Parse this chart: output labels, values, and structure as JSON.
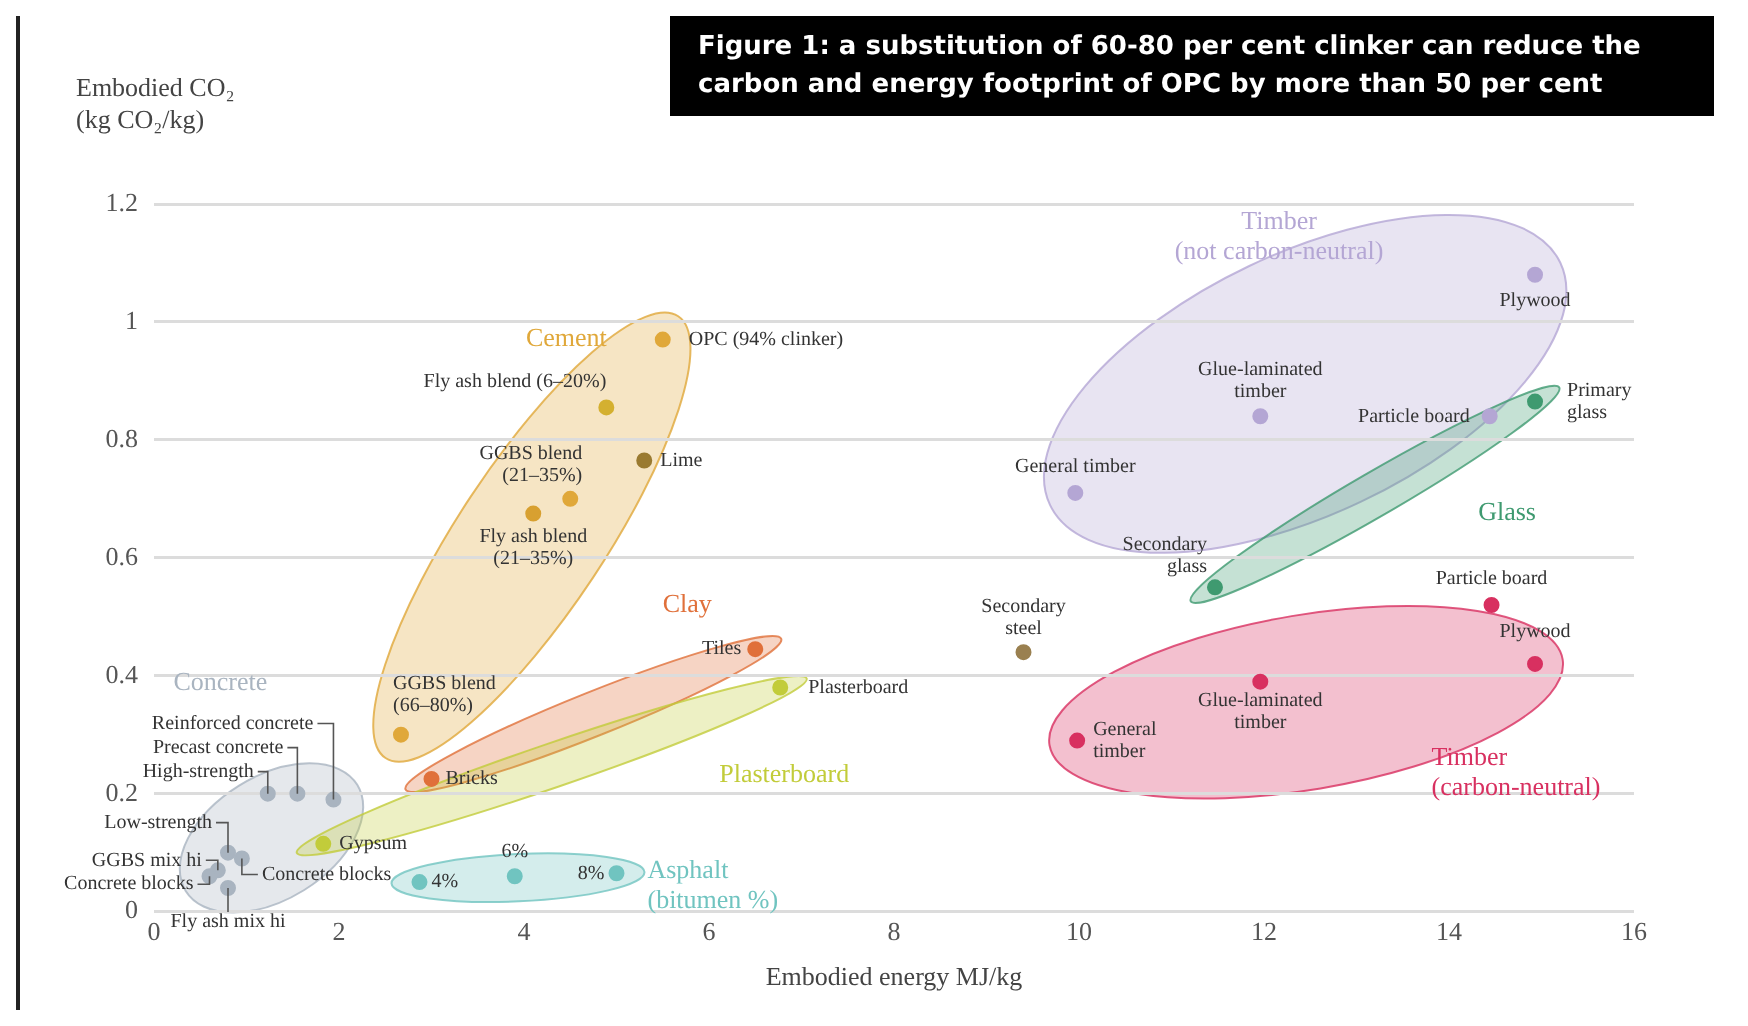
{
  "chart_data": {
    "type": "scatter",
    "title": "Figure 1: a substitution of 60-80 per cent clinker can reduce the carbon and energy footprint of OPC by more than 50 per cent",
    "xlabel": "Embodied energy MJ/kg",
    "ylabel": "Embodied CO₂ (kg CO₂/kg)",
    "series": [
      {
        "name": "Concrete",
        "color": "#a9b4c0",
        "x": [
          1.94,
          1.55,
          1.23,
          0.8,
          0.69,
          0.6,
          0.8,
          0.95
        ],
        "values": [
          0.19,
          0.2,
          0.2,
          0.1,
          0.07,
          0.06,
          0.04,
          0.09
        ]
      },
      {
        "name": "Cement",
        "color": "#e0a83a",
        "colors": [
          "#e0a83a",
          "#d4b030",
          "#9a7a30",
          "#e0a83a",
          "#d8a030",
          "#e0a83a"
        ],
        "x": [
          5.5,
          4.89,
          5.3,
          4.5,
          4.1,
          2.67
        ],
        "values": [
          0.97,
          0.855,
          0.765,
          0.7,
          0.675,
          0.3
        ]
      },
      {
        "name": "Clay",
        "color": "#e0703a",
        "x": [
          6.5,
          3.0
        ],
        "values": [
          0.445,
          0.225
        ]
      },
      {
        "name": "Plasterboard",
        "color": "#c2cc3a",
        "x": [
          6.77,
          1.83
        ],
        "values": [
          0.38,
          0.115
        ]
      },
      {
        "name": "Asphalt (bitumen %)",
        "color": "#70c4c0",
        "x": [
          2.87,
          3.9,
          5.0
        ],
        "values": [
          0.05,
          0.06,
          0.065
        ]
      },
      {
        "color": "#9a8050",
        "x": [
          9.4
        ],
        "values": [
          0.44
        ]
      },
      {
        "name": "Timber (not carbon-neutral)",
        "color": "#b4a6d4",
        "x": [
          14.93,
          11.96,
          14.44,
          9.96
        ],
        "values": [
          1.08,
          0.84,
          0.84,
          0.71
        ]
      },
      {
        "name": "Glass",
        "color": "#3f9a70",
        "x": [
          14.93,
          11.47
        ],
        "values": [
          0.865,
          0.55
        ]
      },
      {
        "name": "Timber (carbon-neutral)",
        "color": "#d83060",
        "x": [
          14.46,
          14.93,
          11.96,
          9.98
        ],
        "values": [
          0.52,
          0.42,
          0.39,
          0.29
        ]
      }
    ],
    "xlim": [
      0,
      16
    ],
    "xticks": [
      0,
      2,
      4,
      6,
      8,
      10,
      12,
      14,
      16
    ],
    "ylim": [
      0,
      1.2
    ],
    "yticks": [
      0,
      0.2,
      0.4,
      0.6,
      0.8,
      1,
      1.2
    ],
    "grid": "y",
    "legend": false,
    "marker": "circle",
    "annotations": [
      {
        "text": "Reinforced concrete",
        "x": 1.94,
        "y": 0.19
      },
      {
        "text": "Precast concrete",
        "x": 1.55,
        "y": 0.2
      },
      {
        "text": "High-strength",
        "x": 1.23,
        "y": 0.2
      },
      {
        "text": "Low-strength",
        "x": 0.8,
        "y": 0.1
      },
      {
        "text": "GGBS mix hi",
        "x": 0.69,
        "y": 0.07
      },
      {
        "text": "Concrete blocks",
        "x": 0.6,
        "y": 0.06
      },
      {
        "text": "Fly ash mix hi",
        "x": 0.8,
        "y": 0.04
      },
      {
        "text": "Concrete blocks",
        "x": 0.95,
        "y": 0.09
      },
      {
        "text": "OPC (94% clinker)",
        "x": 5.5,
        "y": 0.97
      },
      {
        "text": "Fly ash blend (6–20%)",
        "x": 4.89,
        "y": 0.855
      },
      {
        "text": "Lime",
        "x": 5.3,
        "y": 0.765
      },
      {
        "text": "GGBS blend (21–35%)",
        "x": 4.5,
        "y": 0.7
      },
      {
        "text": "Fly ash blend (21–35%)",
        "x": 4.1,
        "y": 0.675
      },
      {
        "text": "GGBS blend (66–80%)",
        "x": 2.67,
        "y": 0.3
      },
      {
        "text": "Tiles",
        "x": 6.5,
        "y": 0.445
      },
      {
        "text": "Bricks",
        "x": 3.0,
        "y": 0.225
      },
      {
        "text": "Plasterboard",
        "x": 6.77,
        "y": 0.38
      },
      {
        "text": "Gypsum",
        "x": 1.83,
        "y": 0.115
      },
      {
        "text": "4%",
        "x": 2.87,
        "y": 0.05
      },
      {
        "text": "6%",
        "x": 3.9,
        "y": 0.06
      },
      {
        "text": "8%",
        "x": 5.0,
        "y": 0.065
      },
      {
        "text": "Secondary steel",
        "x": 9.4,
        "y": 0.44
      },
      {
        "text": "Plywood",
        "x": 14.93,
        "y": 1.08
      },
      {
        "text": "Glue-laminated timber",
        "x": 11.96,
        "y": 0.84
      },
      {
        "text": "Particle board",
        "x": 14.44,
        "y": 0.84
      },
      {
        "text": "General timber",
        "x": 9.96,
        "y": 0.71
      },
      {
        "text": "Primary glass",
        "x": 14.93,
        "y": 0.865
      },
      {
        "text": "Secondary glass",
        "x": 11.47,
        "y": 0.55
      },
      {
        "text": "Particle board",
        "x": 14.46,
        "y": 0.52
      },
      {
        "text": "Plywood",
        "x": 14.93,
        "y": 0.42
      },
      {
        "text": "Glue-laminated timber",
        "x": 11.96,
        "y": 0.39
      },
      {
        "text": "General timber",
        "x": 9.98,
        "y": 0.29
      }
    ]
  }
}
